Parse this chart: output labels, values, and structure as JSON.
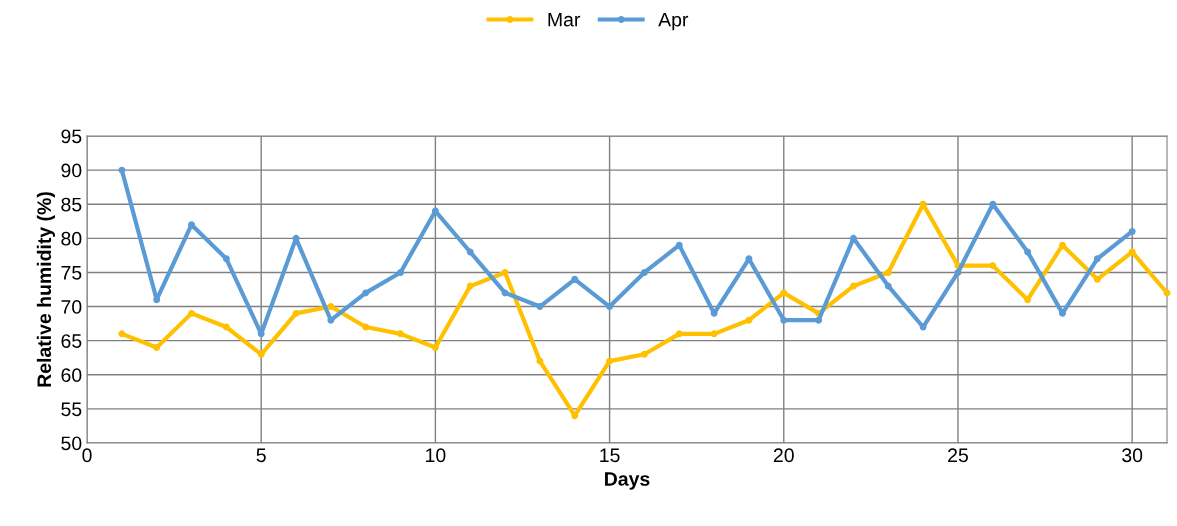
{
  "chart_data": {
    "type": "line",
    "xlabel": "Days",
    "ylabel": "Relative humidity (%)",
    "x": [
      1,
      2,
      3,
      4,
      5,
      6,
      7,
      8,
      9,
      10,
      11,
      12,
      13,
      14,
      15,
      16,
      17,
      18,
      19,
      20,
      21,
      22,
      23,
      24,
      25,
      26,
      27,
      28,
      29,
      30,
      31
    ],
    "series": [
      {
        "name": "Mar",
        "color": "#ffc000",
        "values": [
          66,
          64,
          69,
          67,
          63,
          69,
          70,
          67,
          66,
          64,
          73,
          75,
          62,
          54,
          62,
          63,
          66,
          66,
          68,
          72,
          69,
          73,
          75,
          85,
          76,
          76,
          71,
          79,
          74,
          78,
          72
        ]
      },
      {
        "name": "Apr",
        "color": "#5b9bd5",
        "values": [
          90,
          71,
          82,
          77,
          66,
          80,
          68,
          72,
          75,
          84,
          78,
          72,
          70,
          74,
          70,
          75,
          79,
          69,
          77,
          68,
          68,
          80,
          73,
          67,
          75,
          85,
          78,
          69,
          77,
          81,
          null
        ]
      }
    ],
    "xlim": [
      0,
      31
    ],
    "xticks": [
      0,
      5,
      10,
      15,
      20,
      25,
      30
    ],
    "ylim": [
      50,
      95
    ],
    "yticks": [
      50,
      55,
      60,
      65,
      70,
      75,
      80,
      85,
      90,
      95
    ],
    "grid": true,
    "legend": "top",
    "marker": "circle",
    "line_style": "solid"
  }
}
